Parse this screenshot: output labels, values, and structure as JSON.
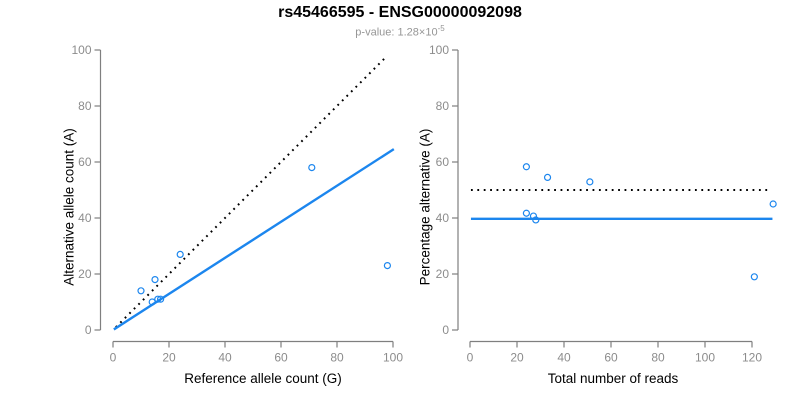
{
  "header": {
    "title": "rs45466595 - ENSG00000092098",
    "subtitle_text": "p-value: 1.28×10",
    "subtitle_exponent": "-5"
  },
  "colors": {
    "accent": "#1C86EE",
    "identity_line": "#000000",
    "tick_label": "#8C8C8C",
    "axis_line": "#7F7F7F",
    "title": "#000000",
    "subtitle": "#969696"
  },
  "chart_data": [
    {
      "type": "scatter",
      "panel": "allele-counts",
      "xlabel": "Reference allele count (G)",
      "ylabel": "Alternative allele count (A)",
      "xlim": [
        0,
        100
      ],
      "ylim": [
        0,
        100
      ],
      "xticks": [
        0,
        20,
        40,
        60,
        80,
        100
      ],
      "yticks": [
        0,
        20,
        40,
        60,
        80,
        100
      ],
      "grid": false,
      "points": [
        [
          10,
          14
        ],
        [
          15,
          18
        ],
        [
          14,
          10
        ],
        [
          16,
          11
        ],
        [
          17,
          11
        ],
        [
          24,
          27
        ],
        [
          71,
          58
        ],
        [
          98,
          23
        ]
      ],
      "lines": [
        {
          "name": "identity",
          "style": "dotted",
          "color": "#000000",
          "x": [
            1,
            97.6
          ],
          "y": [
            1,
            97.6
          ]
        },
        {
          "name": "fit",
          "style": "solid",
          "color": "#1C86EE",
          "x": [
            0.3,
            100.3
          ],
          "y": [
            0.2,
            64.6
          ]
        }
      ]
    },
    {
      "type": "scatter",
      "panel": "percentage-vs-coverage",
      "xlabel": "Total number of reads",
      "ylabel": "Percentage alternative (A)",
      "xlim": [
        0,
        130
      ],
      "ylim": [
        0,
        100
      ],
      "xticks": [
        0,
        20,
        40,
        60,
        80,
        100,
        120
      ],
      "yticks": [
        0,
        20,
        40,
        60,
        80,
        100
      ],
      "grid": false,
      "points": [
        [
          24,
          58.3
        ],
        [
          33,
          54.5
        ],
        [
          24,
          41.7
        ],
        [
          27,
          40.7
        ],
        [
          28,
          39.3
        ],
        [
          51,
          52.9
        ],
        [
          129,
          45
        ],
        [
          121,
          19
        ]
      ],
      "lines": [
        {
          "name": "expected-50pct",
          "style": "dotted",
          "color": "#000000",
          "x": [
            0.4,
            126.8
          ],
          "y": [
            50,
            50
          ]
        },
        {
          "name": "fit",
          "style": "solid",
          "color": "#1C86EE",
          "x": [
            0.4,
            128.7
          ],
          "y": [
            39.7,
            39.7
          ]
        }
      ]
    }
  ]
}
